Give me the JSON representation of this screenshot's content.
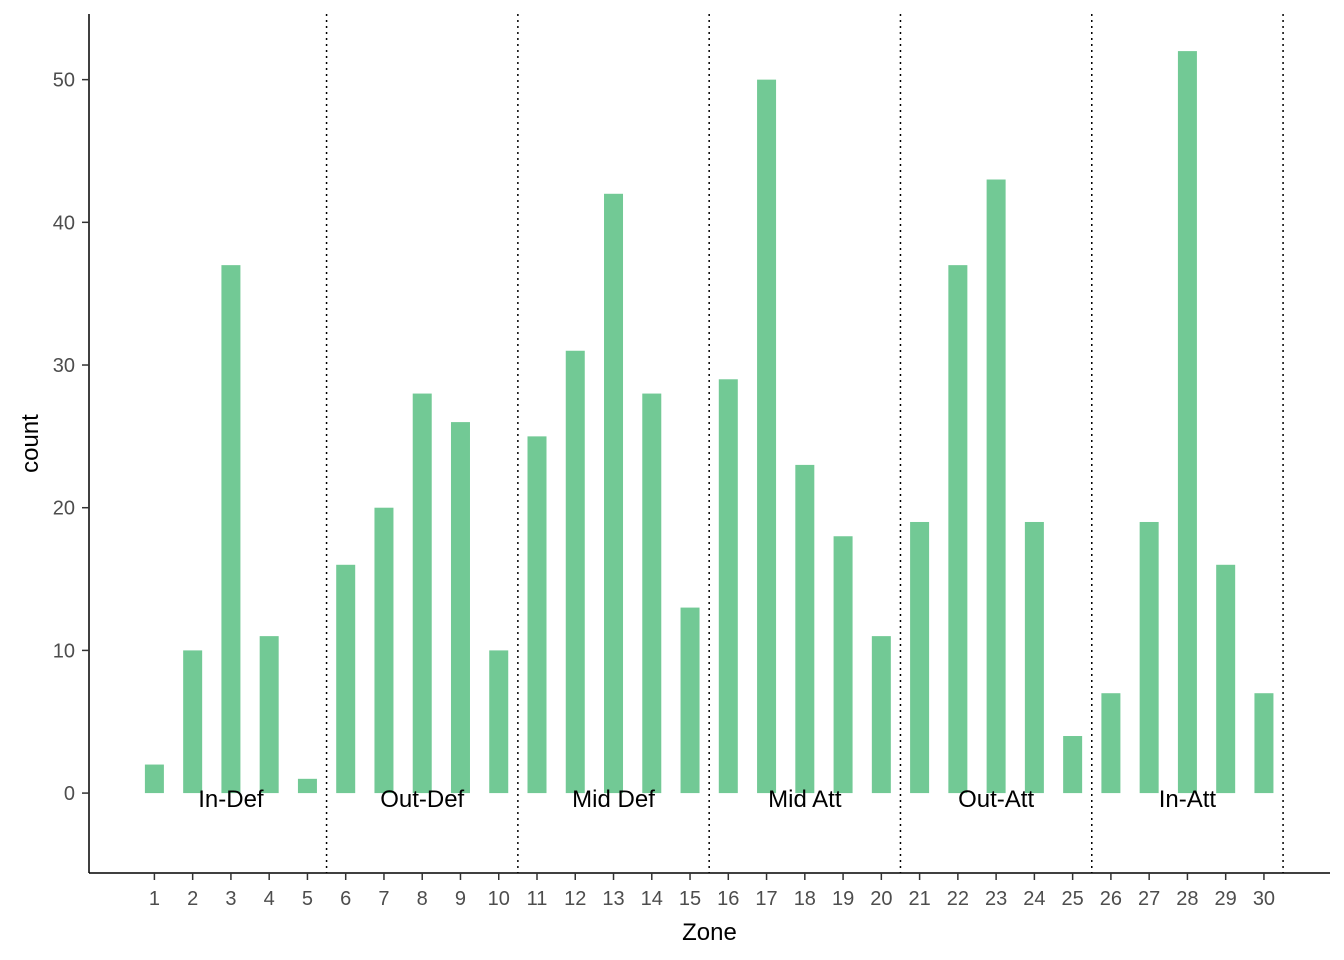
{
  "chart_data": {
    "type": "bar",
    "title": "",
    "xlabel": "Zone",
    "ylabel": "count",
    "categories": [
      "1",
      "2",
      "3",
      "4",
      "5",
      "6",
      "7",
      "8",
      "9",
      "10",
      "11",
      "12",
      "13",
      "14",
      "15",
      "16",
      "17",
      "18",
      "19",
      "20",
      "21",
      "22",
      "23",
      "24",
      "25",
      "26",
      "27",
      "28",
      "29",
      "30"
    ],
    "values": [
      2,
      10,
      37,
      11,
      1,
      16,
      20,
      28,
      26,
      10,
      25,
      31,
      42,
      28,
      13,
      29,
      50,
      23,
      18,
      11,
      19,
      37,
      43,
      19,
      4,
      7,
      19,
      52,
      16,
      7
    ],
    "ylim": [
      -5.6,
      54.6
    ],
    "yticks": [
      0,
      10,
      20,
      30,
      40,
      50
    ],
    "grid": false,
    "bar_color": "#72c995",
    "divider_after_zones": [
      5,
      10,
      15,
      20,
      25,
      30
    ],
    "divider_style": "dotted",
    "regions": [
      {
        "label": "In-Def",
        "zones": [
          1,
          5
        ]
      },
      {
        "label": "Out-Def",
        "zones": [
          6,
          10
        ]
      },
      {
        "label": "Mid Def",
        "zones": [
          11,
          15
        ]
      },
      {
        "label": "Mid Att",
        "zones": [
          16,
          20
        ]
      },
      {
        "label": "Out-Att",
        "zones": [
          21,
          25
        ]
      },
      {
        "label": "In-Att",
        "zones": [
          26,
          30
        ]
      }
    ]
  }
}
